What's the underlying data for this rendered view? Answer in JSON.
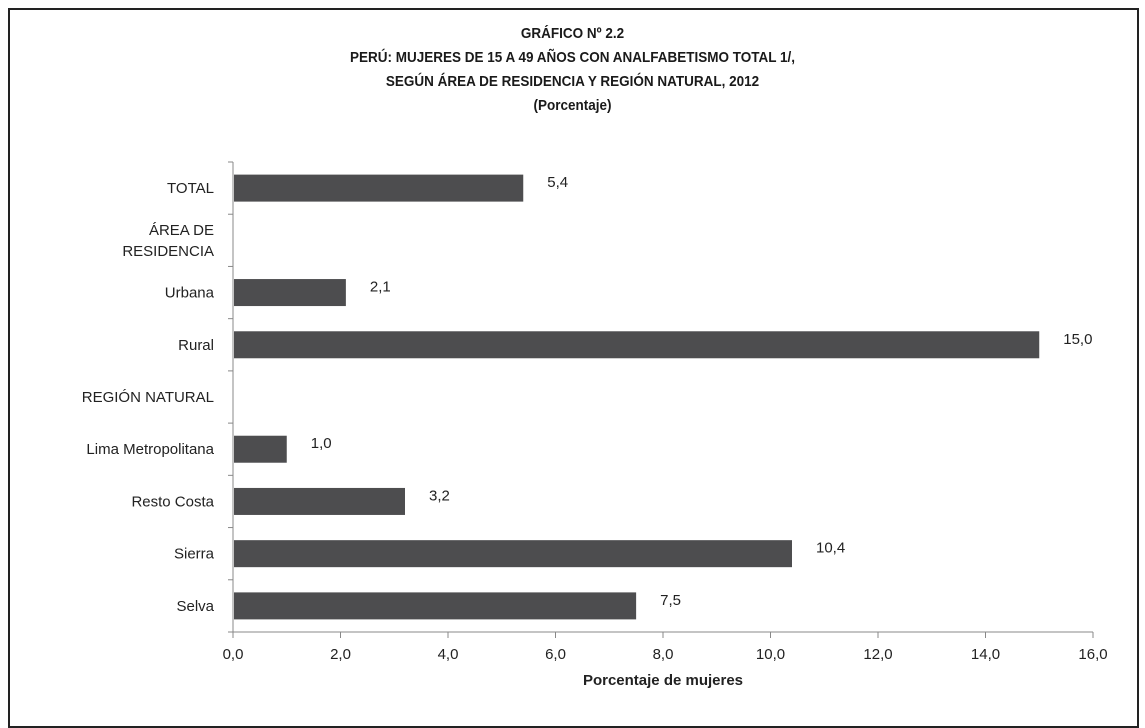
{
  "header": {
    "line1": "GRÁFICO Nº 2.2",
    "line2": "PERÚ: MUJERES DE 15 A 49 AÑOS CON ANALFABETISMO TOTAL 1/,",
    "line3": "SEGÚN ÁREA DE RESIDENCIA Y REGIÓN NATURAL, 2012",
    "line4": "(Porcentaje)"
  },
  "chart_data": {
    "type": "bar",
    "orientation": "horizontal",
    "categories": [
      [
        "TOTAL"
      ],
      [
        "ÁREA DE",
        "RESIDENCIA"
      ],
      [
        "Urbana"
      ],
      [
        "Rural"
      ],
      [
        "REGIÓN NATURAL"
      ],
      [
        "Lima Metropolitana"
      ],
      [
        "Resto Costa"
      ],
      [
        "Sierra"
      ],
      [
        "Selva"
      ]
    ],
    "values": [
      5.4,
      null,
      2.1,
      15.0,
      null,
      1.0,
      3.2,
      10.4,
      7.5
    ],
    "value_labels": [
      "5,4",
      "",
      "2,1",
      "15,0",
      "",
      "1,0",
      "3,2",
      "10,4",
      "7,5"
    ],
    "xlabel": "Porcentaje de mujeres",
    "xlim": [
      0,
      16
    ],
    "xticks": [
      0,
      2,
      4,
      6,
      8,
      10,
      12,
      14,
      16
    ],
    "xtick_labels": [
      "0,0",
      "2,0",
      "4,0",
      "6,0",
      "8,0",
      "10,0",
      "12,0",
      "14,0",
      "16,0"
    ],
    "bar_color": "#4d4d4f",
    "grid": false,
    "legend": "none"
  }
}
